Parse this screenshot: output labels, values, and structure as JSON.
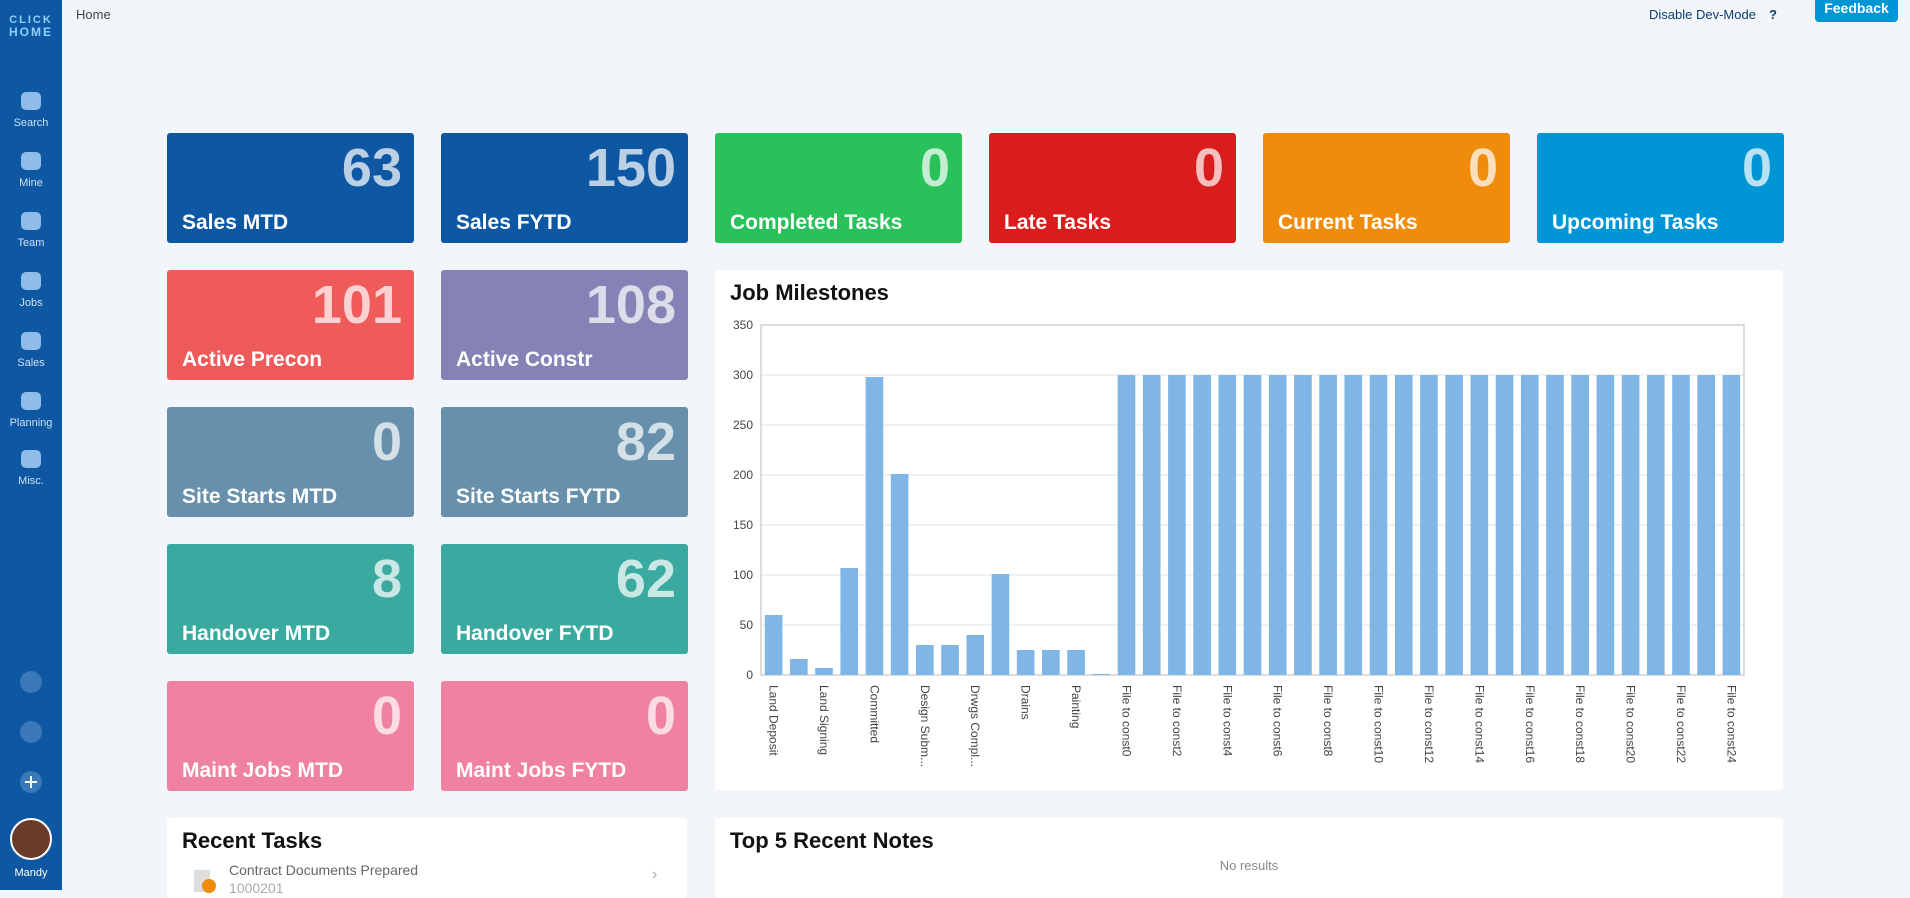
{
  "header": {
    "breadcrumb": "Home",
    "dev_mode": "Disable Dev-Mode",
    "help": "?",
    "feedback": "Feedback"
  },
  "logo": {
    "top": "CLICK",
    "bottom": "HOME"
  },
  "sidebar": [
    "Search",
    "Mine",
    "Team",
    "Jobs",
    "Sales",
    "Planning",
    "Misc."
  ],
  "user": "Mandy",
  "tiles": [
    {
      "label": "Sales MTD",
      "value": 63,
      "color": "#0d57a3"
    },
    {
      "label": "Sales FYTD",
      "value": 150,
      "color": "#0d57a3"
    },
    {
      "label": "Completed Tasks",
      "value": 0,
      "color": "#28c15a"
    },
    {
      "label": "Late Tasks",
      "value": 0,
      "color": "#d91c1c"
    },
    {
      "label": "Current Tasks",
      "value": 0,
      "color": "#f08c0c"
    },
    {
      "label": "Upcoming Tasks",
      "value": 0,
      "color": "#0096d6"
    },
    {
      "label": "Active Precon",
      "value": 101,
      "color": "#ef5b5b"
    },
    {
      "label": "Active Constr",
      "value": 108,
      "color": "#8583b5"
    },
    {
      "label": "Site Starts MTD",
      "value": 0,
      "color": "#6690ab"
    },
    {
      "label": "Site Starts FYTD",
      "value": 82,
      "color": "#6690ab"
    },
    {
      "label": "Handover MTD",
      "value": 8,
      "color": "#3aaaa0"
    },
    {
      "label": "Handover FYTD",
      "value": 62,
      "color": "#3aaaa0"
    },
    {
      "label": "Maint Jobs MTD",
      "value": 0,
      "color": "#ef82a0"
    },
    {
      "label": "Maint Jobs FYTD",
      "value": 0,
      "color": "#ef82a0"
    }
  ],
  "chart_data": {
    "type": "bar",
    "title": "Job Milestones",
    "color": "#7fb6e6",
    "grid": true,
    "categories": [
      "Land Deposit",
      null,
      "Land Signing",
      null,
      "Committed",
      null,
      "Design Subm...",
      null,
      "Drwgs Compl...",
      null,
      "Drains",
      null,
      "Painting",
      null,
      "File to const0",
      null,
      "File to const2",
      null,
      "File to const4",
      null,
      "File to const6",
      null,
      "File to const8",
      null,
      "File to const10",
      null,
      "File to const12",
      null,
      "File to const14",
      null,
      "File to const16",
      null,
      "File to const18",
      null,
      "File to const20",
      null,
      "File to const22",
      null,
      "File to const24"
    ],
    "values": [
      60,
      16,
      7,
      107,
      298,
      201,
      30,
      30,
      40,
      101,
      25,
      25,
      25,
      1,
      300,
      300,
      300,
      300,
      300,
      300,
      300,
      300,
      300,
      300,
      300,
      300,
      300,
      300,
      300,
      300,
      300,
      300,
      300,
      300,
      300,
      300,
      300,
      300,
      300
    ],
    "ylim": [
      0,
      350
    ],
    "yticks": [
      0,
      50,
      100,
      150,
      200,
      250,
      300,
      350
    ]
  },
  "recent_tasks": {
    "title": "Recent Tasks",
    "items": [
      {
        "name": "Contract Documents Prepared",
        "id": "1000201"
      }
    ]
  },
  "notes": {
    "title": "Top 5 Recent Notes",
    "empty": "No results"
  }
}
